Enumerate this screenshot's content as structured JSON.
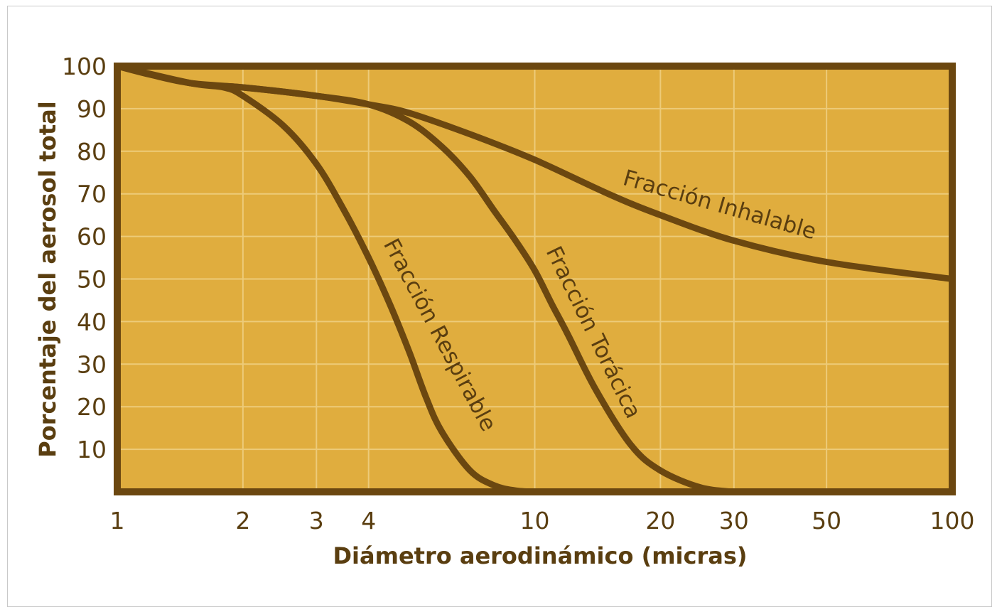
{
  "chart_data": {
    "type": "line",
    "title": "",
    "xlabel": "Diámetro aerodinámico (micras)",
    "ylabel": "Porcentaje del aerosol total",
    "x_scale": "log",
    "xlim": [
      1,
      100
    ],
    "ylim": [
      0,
      100
    ],
    "x_ticks": [
      1,
      2,
      3,
      4,
      10,
      20,
      30,
      50,
      100
    ],
    "x_tick_labels": [
      "1",
      "2",
      "3",
      "4",
      "10",
      "20",
      "30",
      "50",
      "100"
    ],
    "y_ticks": [
      10,
      20,
      30,
      40,
      50,
      60,
      70,
      80,
      90,
      100
    ],
    "y_tick_labels": [
      "10",
      "20",
      "30",
      "40",
      "50",
      "60",
      "70",
      "80",
      "90",
      "100"
    ],
    "grid": true,
    "legend": "none",
    "colors": {
      "plot_background": "#E0AD3E",
      "curve": "#6B4710",
      "text": "#5A3E10",
      "grid": "#EDCB79"
    },
    "series": [
      {
        "name": "Fracción Inhalable",
        "x": [
          1,
          1.2,
          1.5,
          2,
          3,
          4,
          5,
          7,
          10,
          15,
          20,
          30,
          50,
          100
        ],
        "y": [
          100,
          98,
          96,
          95,
          93,
          91,
          89,
          84,
          78,
          70,
          65,
          59,
          54,
          50
        ]
      },
      {
        "name": "Fracción Torácica",
        "x": [
          1,
          1.5,
          2,
          3,
          4,
          5,
          6,
          7,
          8,
          9,
          10,
          11,
          12,
          14,
          17,
          20,
          25,
          30
        ],
        "y": [
          100,
          96,
          95,
          93,
          91,
          87,
          81,
          74,
          66,
          59,
          52,
          44,
          37,
          24,
          11,
          5,
          1,
          0
        ]
      },
      {
        "name": "Fracción Respirable",
        "x": [
          1,
          1.5,
          1.8,
          2,
          2.5,
          3,
          3.5,
          4,
          4.5,
          5,
          5.5,
          6,
          7,
          8,
          9,
          10
        ],
        "y": [
          100,
          96,
          95,
          93,
          86,
          77,
          66,
          55,
          44,
          33,
          22,
          14,
          5,
          1.5,
          0.3,
          0
        ]
      }
    ]
  }
}
